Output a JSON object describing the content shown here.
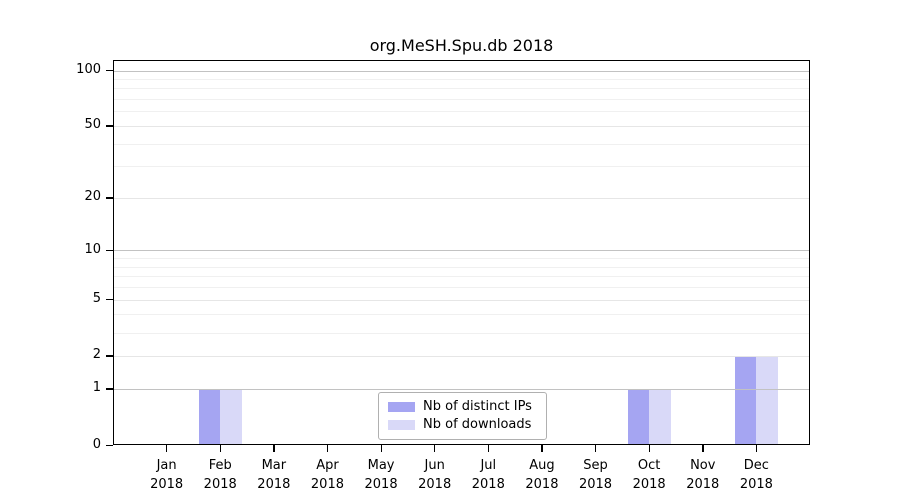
{
  "chart_data": {
    "type": "bar",
    "title": "org.MeSH.Spu.db 2018",
    "categories": [
      "Jan",
      "Feb",
      "Mar",
      "Apr",
      "May",
      "Jun",
      "Jul",
      "Aug",
      "Sep",
      "Oct",
      "Nov",
      "Dec"
    ],
    "category_year": "2018",
    "series": [
      {
        "name": "Nb of distinct IPs",
        "color": "#a5a5f2",
        "values": [
          0,
          1,
          0,
          0,
          0,
          0,
          0,
          0,
          0,
          1,
          0,
          2
        ]
      },
      {
        "name": "Nb of downloads",
        "color": "#d9d9f8",
        "values": [
          0,
          1,
          0,
          0,
          0,
          0,
          0,
          0,
          0,
          1,
          0,
          2
        ]
      }
    ],
    "xlabel": "",
    "ylabel": "",
    "yscale": "log1p",
    "ylim": [
      0,
      114
    ],
    "yticks": [
      0,
      1,
      2,
      5,
      10,
      20,
      50,
      100
    ],
    "minor_yticks": [
      3,
      4,
      6,
      7,
      8,
      9,
      30,
      40,
      60,
      70,
      80,
      90
    ],
    "grid": "horizontal",
    "legend_position": "lower center",
    "colors": {
      "grid_major_power10": "#c2c2c2",
      "grid_major_other": "#e6e6e6",
      "grid_minor": "#f0f0f0",
      "axis": "#000000",
      "text": "#000000",
      "background": "#ffffff"
    }
  }
}
